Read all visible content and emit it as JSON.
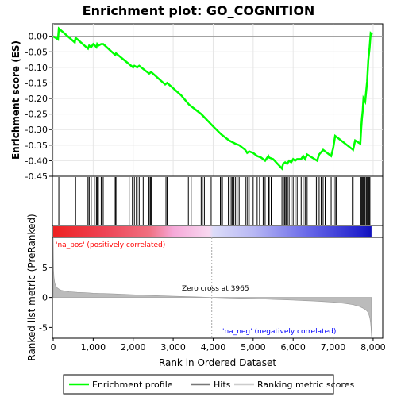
{
  "title": "Enrichment plot: GO_COGNITION",
  "colors": {
    "es_line": "#00ff00",
    "hits": "#000000",
    "metric_fill": "#bbbbbb",
    "pos_label": "#ff0000",
    "neg_label": "#0000ff",
    "zero_cross_line": "#aaaaaa"
  },
  "labels": {
    "pos": "'na_pos' (positively correlated)",
    "neg": "'na_neg' (negatively correlated)",
    "zero_cross": "Zero cross at 3965"
  },
  "legend": {
    "items": [
      "Enrichment profile",
      "Hits",
      "Ranking metric scores"
    ],
    "placement": "bottom"
  },
  "chart_data": {
    "type": "line",
    "title": "Enrichment plot: GO_COGNITION",
    "es_panel": {
      "ylabel": "Enrichment score (ES)",
      "ylim": [
        -0.45,
        0.04
      ],
      "yticks": [
        0.0,
        -0.05,
        -0.1,
        -0.15,
        -0.2,
        -0.25,
        -0.3,
        -0.35,
        -0.4,
        -0.45
      ],
      "ytick_labels": [
        "0.00",
        "-0.05",
        "-0.10",
        "-0.15",
        "-0.20",
        "-0.25",
        "-0.30",
        "-0.35",
        "-0.40",
        "-0.45"
      ],
      "series": [
        {
          "name": "Enrichment profile",
          "x": [
            0,
            120,
            140,
            540,
            560,
            870,
            900,
            950,
            1000,
            1040,
            1080,
            1100,
            1130,
            1200,
            1250,
            1550,
            1570,
            2000,
            2030,
            2100,
            2150,
            2250,
            2400,
            2450,
            2800,
            2850,
            3200,
            3400,
            3700,
            4000,
            4200,
            4400,
            4550,
            4650,
            4800,
            4850,
            4900,
            5000,
            5100,
            5200,
            5300,
            5380,
            5400,
            5500,
            5720,
            5750,
            5800,
            5850,
            5900,
            5950,
            6000,
            6050,
            6100,
            6200,
            6250,
            6300,
            6350,
            6600,
            6650,
            6750,
            6800,
            6950,
            7000,
            7050,
            7100,
            7500,
            7550,
            7680,
            7700,
            7720,
            7740,
            7760,
            7800,
            7850,
            7880,
            7910,
            7940,
            7980
          ],
          "y": [
            0.0,
            -0.01,
            0.025,
            -0.02,
            -0.005,
            -0.04,
            -0.03,
            -0.035,
            -0.025,
            -0.03,
            -0.035,
            -0.025,
            -0.03,
            -0.025,
            -0.025,
            -0.06,
            -0.055,
            -0.1,
            -0.095,
            -0.1,
            -0.095,
            -0.105,
            -0.12,
            -0.115,
            -0.155,
            -0.15,
            -0.19,
            -0.22,
            -0.25,
            -0.29,
            -0.315,
            -0.335,
            -0.345,
            -0.35,
            -0.365,
            -0.375,
            -0.37,
            -0.375,
            -0.385,
            -0.39,
            -0.4,
            -0.385,
            -0.39,
            -0.395,
            -0.425,
            -0.41,
            -0.405,
            -0.41,
            -0.4,
            -0.405,
            -0.395,
            -0.4,
            -0.395,
            -0.395,
            -0.385,
            -0.395,
            -0.38,
            -0.4,
            -0.38,
            -0.365,
            -0.37,
            -0.385,
            -0.36,
            -0.32,
            -0.325,
            -0.365,
            -0.335,
            -0.345,
            -0.3,
            -0.265,
            -0.24,
            -0.2,
            -0.21,
            -0.145,
            -0.075,
            -0.04,
            0.01,
            0.005
          ]
        }
      ]
    },
    "hits_panel": {
      "type": "rug",
      "positions": [
        140,
        560,
        870,
        900,
        950,
        1030,
        1080,
        1100,
        1130,
        1200,
        1250,
        1550,
        1570,
        1900,
        1980,
        2030,
        2080,
        2100,
        2150,
        2250,
        2380,
        2400,
        2430,
        2450,
        2820,
        2850,
        3380,
        3450,
        3700,
        3730,
        3780,
        3950,
        4120,
        4180,
        4210,
        4230,
        4380,
        4400,
        4450,
        4480,
        4500,
        4520,
        4560,
        4600,
        4650,
        4820,
        4860,
        4900,
        5000,
        5100,
        5160,
        5250,
        5300,
        5380,
        5400,
        5450,
        5720,
        5750,
        5780,
        5800,
        5830,
        5860,
        5900,
        5950,
        6000,
        6050,
        6100,
        6200,
        6250,
        6300,
        6350,
        6580,
        6620,
        6650,
        6700,
        6750,
        6800,
        6950,
        7000,
        7050,
        7080,
        7480,
        7500,
        7680,
        7700,
        7720,
        7740,
        7760,
        7780,
        7800,
        7830,
        7850,
        7880,
        7900,
        7920
      ]
    },
    "ranked_metric_panel": {
      "type": "area",
      "xlabel": "Rank in Ordered Dataset",
      "ylabel": "Ranked list metric (PreRanked)",
      "xlim": [
        0,
        8200
      ],
      "ylim": [
        -6.8,
        10
      ],
      "xticks": [
        0,
        1000,
        2000,
        3000,
        4000,
        5000,
        6000,
        7000,
        8000
      ],
      "xtick_labels": [
        "0",
        "1,000",
        "2,000",
        "3,000",
        "4,000",
        "5,000",
        "6,000",
        "7,000",
        "8,000"
      ],
      "yticks": [
        5,
        0,
        -5
      ],
      "ytick_labels": [
        "5",
        "0",
        "-5"
      ],
      "zero_cross": 3965,
      "x": [
        0,
        5,
        10,
        20,
        40,
        60,
        100,
        150,
        200,
        300,
        400,
        600,
        800,
        1000,
        1500,
        2000,
        2500,
        3000,
        3500,
        3965,
        4500,
        5000,
        5500,
        6000,
        6500,
        7000,
        7300,
        7500,
        7650,
        7750,
        7800,
        7850,
        7880,
        7900,
        7920,
        7935,
        7945,
        7960
      ],
      "y": [
        10.0,
        6.5,
        4.5,
        3.3,
        2.4,
        2.0,
        1.6,
        1.35,
        1.2,
        1.05,
        0.95,
        0.85,
        0.8,
        0.7,
        0.6,
        0.45,
        0.32,
        0.2,
        0.1,
        0.0,
        -0.1,
        -0.2,
        -0.33,
        -0.45,
        -0.6,
        -0.8,
        -1.0,
        -1.2,
        -1.5,
        -1.8,
        -2.0,
        -2.3,
        -2.6,
        -3.0,
        -3.5,
        -4.2,
        -5.0,
        -6.5
      ]
    },
    "color_bar": {
      "stops": [
        {
          "rank": 0,
          "color": "#ee2222"
        },
        {
          "rank": 1300,
          "color": "#ee4455"
        },
        {
          "rank": 2400,
          "color": "#f07080"
        },
        {
          "rank": 3000,
          "color": "#f5a8d8"
        },
        {
          "rank": 3900,
          "color": "#f8d8f0"
        },
        {
          "rank": 4000,
          "color": "#dcdcf8"
        },
        {
          "rank": 5000,
          "color": "#b8b8f4"
        },
        {
          "rank": 6400,
          "color": "#6666e8"
        },
        {
          "rank": 7700,
          "color": "#2222cc"
        },
        {
          "rank": 7960,
          "color": "#1111bb"
        }
      ]
    }
  }
}
